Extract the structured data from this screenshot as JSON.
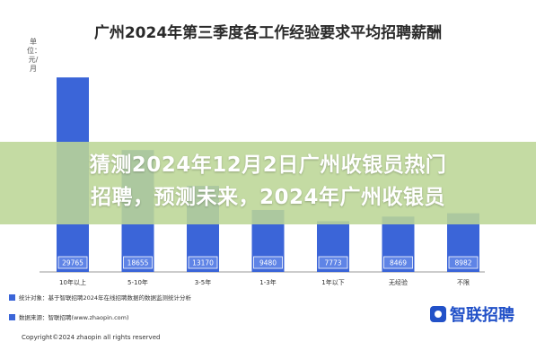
{
  "chart_data": {
    "type": "bar",
    "title": "广州2024年第三季度各工作经验要求平均招聘薪酬",
    "unit_label": "单位：元/月",
    "categories": [
      "10年以上",
      "5-10年",
      "3-5年",
      "1-3年",
      "1年以下",
      "无经验",
      "不限"
    ],
    "values": [
      29765,
      18655,
      13170,
      9480,
      7773,
      8469,
      8982
    ],
    "ylim": [
      0,
      32000
    ],
    "grid": false,
    "colors": {
      "bar": "#3b65d8",
      "label_box": "#5f84e6"
    }
  },
  "notes": {
    "stat_scope": "统计对象：基于智联招聘2024年在线招聘数据的数据监测统计分析",
    "data_source": "数据来源：智联招聘(www.zhaopin.com)"
  },
  "brand": {
    "name": "智联招聘"
  },
  "copyright": "Copyright©2024 zhaopin all rights reserved",
  "headline": "猜测2024年12月2日广州收银员热门\n招聘，预测未来，2024年广州收银员"
}
